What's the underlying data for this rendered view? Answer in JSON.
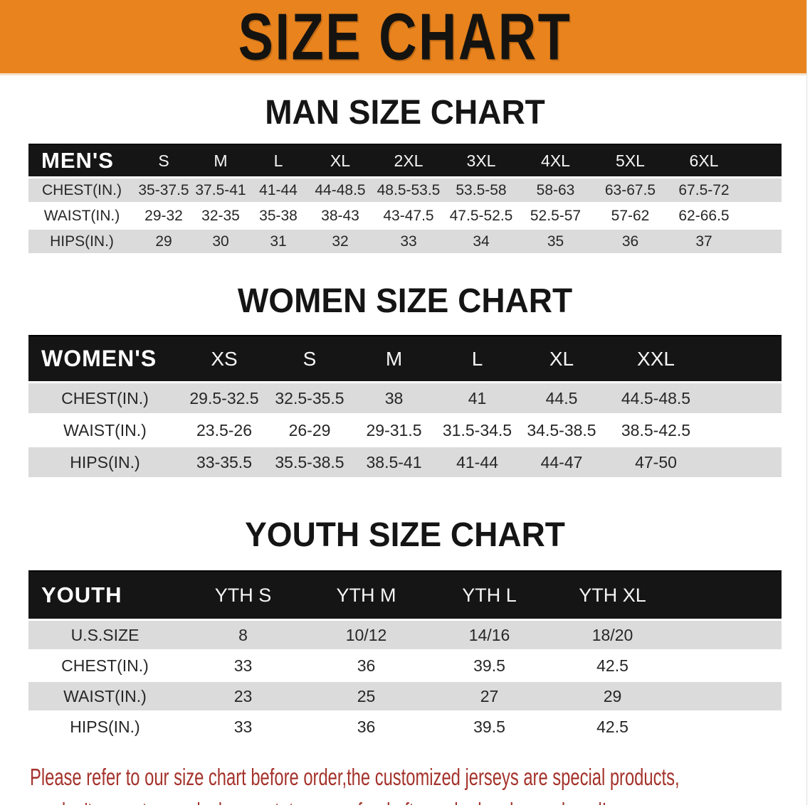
{
  "banner": {
    "title": "SIZE CHART"
  },
  "colors": {
    "banner_bg": "#E8831E",
    "header_bar": "#151515",
    "stripe_gray": "#DBDBDB",
    "note_red": "#A4332B"
  },
  "men": {
    "heading": "MAN SIZE CHART",
    "header_label": "MEN'S",
    "columns": [
      "S",
      "M",
      "L",
      "XL",
      "2XL",
      "3XL",
      "4XL",
      "5XL",
      "6XL"
    ],
    "rows": [
      {
        "label": "CHEST(IN.)",
        "values": [
          "35-37.5",
          "37.5-41",
          "41-44",
          "44-48.5",
          "48.5-53.5",
          "53.5-58",
          "58-63",
          "63-67.5",
          "67.5-72"
        ]
      },
      {
        "label": "WAIST(IN.)",
        "values": [
          "29-32",
          "32-35",
          "35-38",
          "38-43",
          "43-47.5",
          "47.5-52.5",
          "52.5-57",
          "57-62",
          "62-66.5"
        ]
      },
      {
        "label": "HIPS(IN.)",
        "values": [
          "29",
          "30",
          "31",
          "32",
          "33",
          "34",
          "35",
          "36",
          "37"
        ]
      }
    ]
  },
  "women": {
    "heading": "WOMEN SIZE CHART",
    "header_label": "WOMEN'S",
    "columns": [
      "XS",
      "S",
      "M",
      "L",
      "XL",
      "XXL"
    ],
    "rows": [
      {
        "label": "CHEST(IN.)",
        "values": [
          "29.5-32.5",
          "32.5-35.5",
          "38",
          "41",
          "44.5",
          "44.5-48.5"
        ]
      },
      {
        "label": "WAIST(IN.)",
        "values": [
          "23.5-26",
          "26-29",
          "29-31.5",
          "31.5-34.5",
          "34.5-38.5",
          "38.5-42.5"
        ]
      },
      {
        "label": "HIPS(IN.)",
        "values": [
          "33-35.5",
          "35.5-38.5",
          "38.5-41",
          "41-44",
          "44-47",
          "47-50"
        ]
      }
    ]
  },
  "youth": {
    "heading": "YOUTH SIZE CHART",
    "header_label": "YOUTH",
    "columns": [
      "YTH S",
      "YTH M",
      "YTH L",
      "YTH XL"
    ],
    "rows": [
      {
        "label": "U.S.SIZE",
        "values": [
          "8",
          "10/12",
          "14/16",
          "18/20"
        ]
      },
      {
        "label": "CHEST(IN.)",
        "values": [
          "33",
          "36",
          "39.5",
          "42.5"
        ]
      },
      {
        "label": "WAIST(IN.)",
        "values": [
          "23",
          "25",
          "27",
          "29"
        ]
      },
      {
        "label": "HIPS(IN.)",
        "values": [
          "33",
          "36",
          "39.5",
          "42.5"
        ]
      }
    ]
  },
  "footer": {
    "line1": "Please refer to our size chart before order,the customized jerseys are special products,",
    "line2": "we don't accept cancel, change, teturn or refund after order has been placed!"
  }
}
